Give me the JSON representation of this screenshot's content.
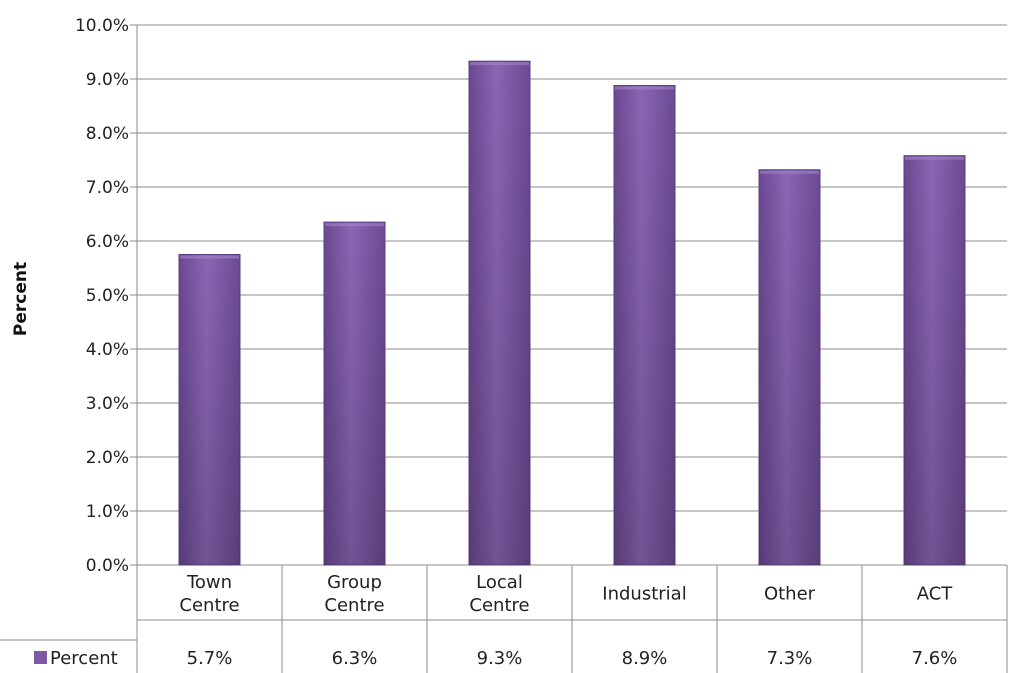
{
  "chart_data": {
    "type": "bar",
    "categories": [
      [
        "Town",
        "Centre"
      ],
      [
        "Group",
        "Centre"
      ],
      [
        "Local",
        "Centre"
      ],
      [
        "Industrial"
      ],
      [
        "Other"
      ],
      [
        "ACT"
      ]
    ],
    "series": [
      {
        "name": "Percent",
        "values": [
          5.75,
          6.35,
          9.33,
          8.88,
          7.32,
          7.58
        ],
        "value_labels": [
          "5.7%",
          "6.3%",
          "9.3%",
          "8.9%",
          "7.3%",
          "7.6%"
        ],
        "color": "#7d5aa6"
      }
    ],
    "ylabel": "Percent",
    "ylim": [
      0,
      10
    ],
    "yticks": [
      "0.0%",
      "1.0%",
      "2.0%",
      "3.0%",
      "4.0%",
      "5.0%",
      "6.0%",
      "7.0%",
      "8.0%",
      "9.0%",
      "10.0%"
    ],
    "grid": true,
    "legend_placement": "bottom-left (data table)",
    "data_table": true
  }
}
